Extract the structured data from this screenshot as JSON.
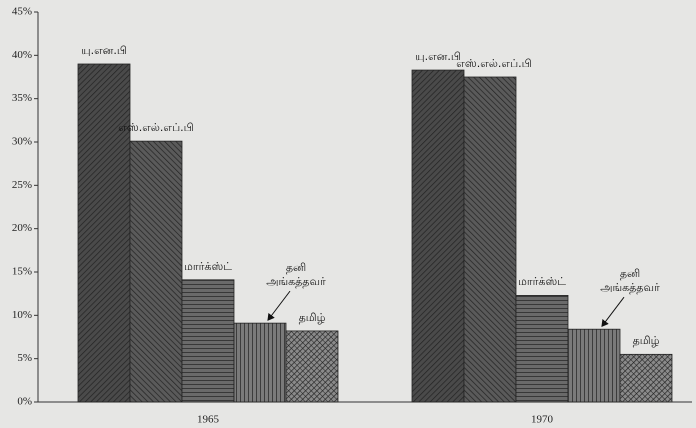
{
  "chart_data": {
    "type": "bar",
    "categories": [
      "1965",
      "1970"
    ],
    "series": [
      {
        "name": "யு.என.பி",
        "color": "#4a4a4a",
        "values": [
          39,
          38.3
        ]
      },
      {
        "name": "எஸ்.எல்.எப்.பி",
        "color": "#5a5a5a",
        "values": [
          30.1,
          37.5
        ]
      },
      {
        "name": "மார்க்ஸ்ட்",
        "color": "#6a6a6a",
        "values": [
          14.1,
          12.3
        ]
      },
      {
        "name": "தனி அங்கத்தவர்",
        "color": "#7a7a7a",
        "values": [
          9.1,
          8.4
        ]
      },
      {
        "name": "தமிழ்",
        "color": "#8a8a8a",
        "values": [
          8.2,
          5.5
        ]
      }
    ],
    "ylim": [
      0,
      45
    ],
    "yticks": [
      {
        "value": 0,
        "label": "0%"
      },
      {
        "value": 5,
        "label": "5%"
      },
      {
        "value": 10,
        "label": "10%"
      },
      {
        "value": 15,
        "label": "15%"
      },
      {
        "value": 20,
        "label": "20%"
      },
      {
        "value": 25,
        "label": "25%"
      },
      {
        "value": 30,
        "label": "30%"
      },
      {
        "value": 35,
        "label": "35%"
      },
      {
        "value": 40,
        "label": "40%"
      },
      {
        "value": 45,
        "label": "45%"
      }
    ],
    "grid": false
  }
}
